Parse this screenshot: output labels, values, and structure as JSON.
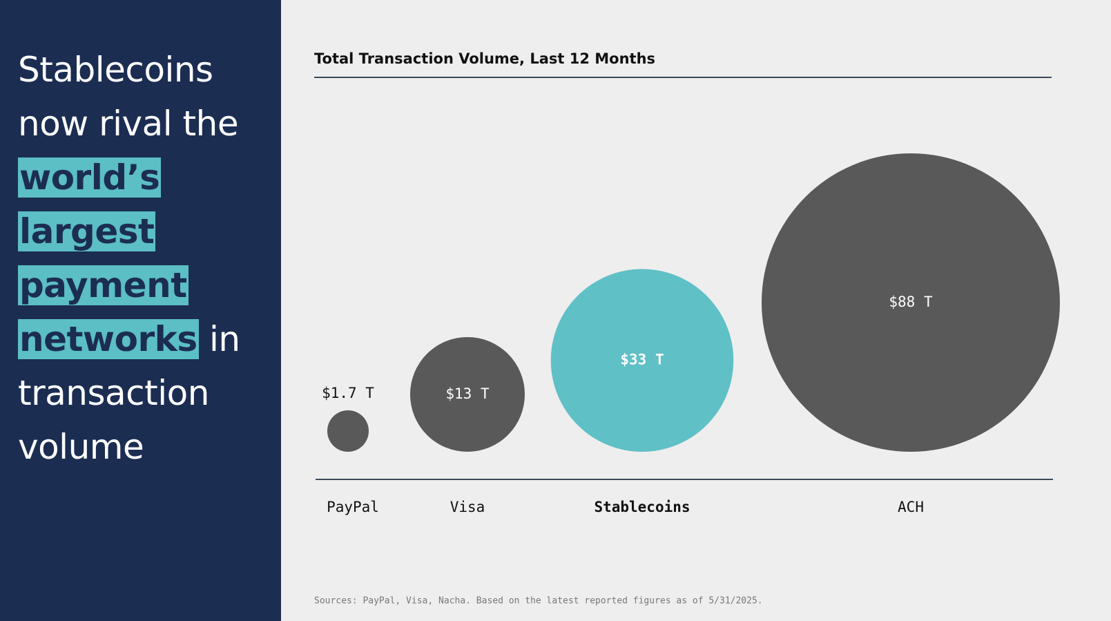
{
  "headline": {
    "parts": [
      {
        "text": "Stablecoins now rival the",
        "highlight": false
      },
      {
        "text": "world’s largest payment networks",
        "highlight": true
      },
      {
        "text": "in transaction volume",
        "highlight": false
      }
    ]
  },
  "chart_data": {
    "type": "bubble",
    "title": "Total Transaction Volume, Last 12 Months",
    "categories": [
      "PayPal",
      "Visa",
      "Stablecoins",
      "ACH"
    ],
    "values": [
      1.7,
      13,
      33,
      88
    ],
    "value_labels": [
      "$1.7 T",
      "$13 T",
      "$33 T",
      "$88 T"
    ],
    "colors": [
      "#595959",
      "#595959",
      "#5fc0c6",
      "#595959"
    ],
    "bold": [
      false,
      false,
      true,
      false
    ]
  },
  "source": "Sources: PayPal, Visa, Nacha. Based on the latest reported figures as of 5/31/2025."
}
